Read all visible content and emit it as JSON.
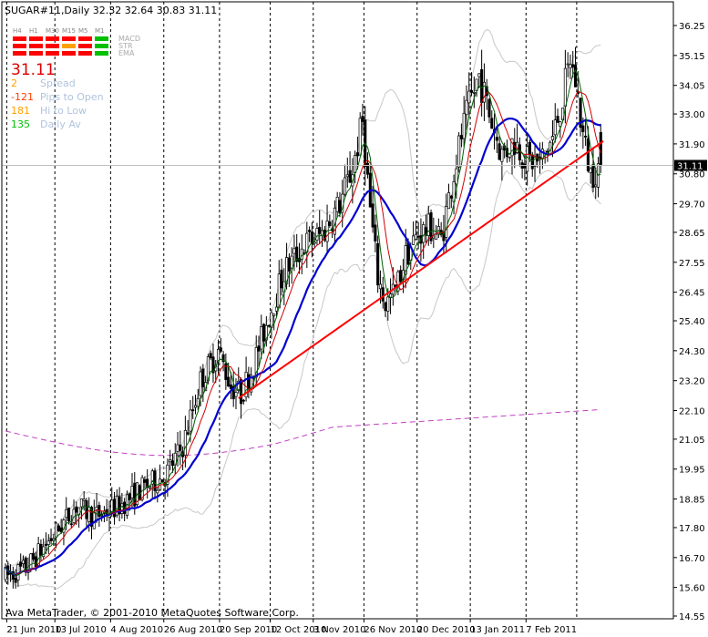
{
  "window_title": "SUGAR#11,Daily  32.32 32.64 30.83 31.11",
  "copyright": "Ava MetaTrader, © 2001-2010 MetaQuotes Software Corp.",
  "indicator_panel": {
    "timeframes": [
      "H4",
      "H1",
      "M30",
      "M15",
      "M5",
      "M1"
    ],
    "rows": [
      "MACD",
      "STR",
      "EMA"
    ],
    "cell_colors": [
      [
        "#ff0000",
        "#ff0000",
        "#ff0000",
        "#ff0000",
        "#ff0000",
        "#00c000"
      ],
      [
        "#ff0000",
        "#ff0000",
        "#ff0000",
        "#ffa000",
        "#ff0000",
        "#00c000"
      ],
      [
        "#ff0000",
        "#ff0000",
        "#ff0000",
        "#ff0000",
        "#ff0000",
        "#00c000"
      ]
    ],
    "price": "31.11",
    "stats": [
      {
        "value": "2",
        "label": "Spread",
        "color": "#ffa000"
      },
      {
        "value": "-121",
        "label": "Pips to Open",
        "color": "#ff4000"
      },
      {
        "value": "181",
        "label": "Hi to Low",
        "color": "#ffa000"
      },
      {
        "value": "135",
        "label": "Daily Av",
        "color": "#00c000"
      }
    ]
  },
  "chart_data": {
    "type": "candlestick",
    "symbol": "SUGAR#11",
    "timeframe": "Daily",
    "ohlc_last": {
      "open": 32.32,
      "high": 32.64,
      "low": 30.83,
      "close": 31.11
    },
    "current_price": 31.11,
    "ylim": [
      14.55,
      36.25
    ],
    "y_ticks": [
      36.25,
      35.15,
      34.05,
      33.0,
      31.9,
      30.8,
      29.7,
      28.65,
      27.55,
      26.45,
      25.4,
      24.3,
      23.2,
      22.1,
      21.05,
      19.95,
      18.85,
      17.8,
      16.7,
      15.6,
      14.55
    ],
    "x_tick_labels": [
      "21 Jun 2010",
      "13 Jul 2010",
      "4 Aug 2010",
      "26 Aug 2010",
      "20 Sep 2010",
      "12 Oct 2010",
      "3 Nov 2010",
      "26 Nov 2010",
      "20 Dec 2010",
      "13 Jan 2011",
      "7 Feb 2011"
    ],
    "period_separators": [
      0.5,
      19.5,
      41.5,
      62.5,
      84.5,
      104.5,
      121.5,
      141.5,
      162.5,
      183.5,
      205.5,
      225.5
    ],
    "bar_count": 236,
    "price_anchors": [
      [
        0,
        16.0
      ],
      [
        8,
        16.3
      ],
      [
        18,
        17.4
      ],
      [
        28,
        18.6
      ],
      [
        35,
        18.2
      ],
      [
        45,
        18.6
      ],
      [
        55,
        19.3
      ],
      [
        63,
        19.7
      ],
      [
        70,
        20.8
      ],
      [
        77,
        23.2
      ],
      [
        84,
        24.3
      ],
      [
        89,
        23.0
      ],
      [
        93,
        22.7
      ],
      [
        98,
        23.8
      ],
      [
        104,
        25.6
      ],
      [
        110,
        27.2
      ],
      [
        118,
        28.2
      ],
      [
        125,
        28.6
      ],
      [
        132,
        29.7
      ],
      [
        137,
        31.0
      ],
      [
        141,
        32.7
      ],
      [
        144,
        29.5
      ],
      [
        147,
        27.0
      ],
      [
        150,
        26.0
      ],
      [
        154,
        26.5
      ],
      [
        158,
        27.8
      ],
      [
        163,
        28.6
      ],
      [
        168,
        28.8
      ],
      [
        172,
        28.4
      ],
      [
        176,
        30.4
      ],
      [
        180,
        32.2
      ],
      [
        184,
        33.6
      ],
      [
        187,
        34.4
      ],
      [
        191,
        33.0
      ],
      [
        196,
        31.5
      ],
      [
        201,
        32.0
      ],
      [
        206,
        31.3
      ],
      [
        211,
        31.2
      ],
      [
        216,
        32.1
      ],
      [
        220,
        33.6
      ],
      [
        223,
        35.0
      ],
      [
        225,
        34.2
      ],
      [
        228,
        32.2
      ],
      [
        231,
        30.8
      ],
      [
        235,
        31.11
      ]
    ],
    "trendline": {
      "from": [
        92,
        22.55
      ],
      "to": [
        236,
        32.0
      ],
      "color": "#ff0000"
    },
    "series": [
      {
        "kind": "candles",
        "up_color": "#ffffff",
        "down_color": "#000000"
      },
      {
        "kind": "moving-average",
        "period": 21,
        "color": "#0000d0"
      },
      {
        "kind": "moving-average",
        "period": 10,
        "color": "#d00000"
      },
      {
        "kind": "moving-average",
        "period": 5,
        "color": "#006000"
      },
      {
        "kind": "bollinger-bands",
        "period": 20,
        "deviation": 2,
        "color": "#c8c8c8"
      },
      {
        "kind": "moving-average",
        "period": 200,
        "color": "#c040c0",
        "dashed": true
      }
    ],
    "grid": false
  }
}
